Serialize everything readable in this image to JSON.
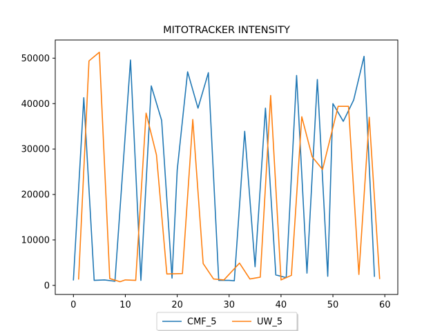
{
  "chart_data": {
    "type": "line",
    "title": "MITOTRACKER INTENSITY",
    "xlabel": "",
    "ylabel": "",
    "xlim": [
      -3.5,
      62.5
    ],
    "ylim": [
      -2000,
      54000
    ],
    "xticks": [
      0,
      10,
      20,
      30,
      40,
      50,
      60
    ],
    "yticks": [
      0,
      10000,
      20000,
      30000,
      40000,
      50000
    ],
    "grid": false,
    "legend_position": "bottom-center",
    "series": [
      {
        "name": "CMF_5",
        "color": "#1f77b4",
        "x": [
          0,
          2,
          4,
          6,
          8,
          11,
          13,
          15,
          17,
          19,
          20,
          22,
          24,
          26,
          28,
          30,
          31,
          33,
          35,
          37,
          39,
          41,
          43,
          45,
          47,
          49,
          50,
          52,
          54,
          56,
          58
        ],
        "y": [
          1200,
          41300,
          1100,
          1200,
          900,
          49600,
          1100,
          43900,
          36300,
          1600,
          25400,
          47000,
          39000,
          46800,
          1100,
          1100,
          1000,
          33900,
          4100,
          39000,
          2300,
          1700,
          46200,
          2700,
          45300,
          2000,
          40000,
          36100,
          40800,
          50400,
          2000
        ]
      },
      {
        "name": "UW_5",
        "color": "#ff7f0e",
        "x": [
          1,
          3,
          5,
          7,
          9,
          10,
          12,
          14,
          16,
          18,
          21,
          23,
          25,
          27,
          29,
          32,
          34,
          36,
          38,
          40,
          42,
          44,
          46,
          48,
          51,
          53,
          55,
          57,
          59
        ],
        "y": [
          1400,
          49400,
          51300,
          1500,
          800,
          1200,
          1100,
          37900,
          28700,
          2500,
          2600,
          36500,
          4800,
          1400,
          1200,
          4900,
          1400,
          1800,
          41800,
          1200,
          2200,
          37100,
          28300,
          25500,
          39400,
          39400,
          2400,
          37000,
          1500
        ]
      }
    ]
  }
}
